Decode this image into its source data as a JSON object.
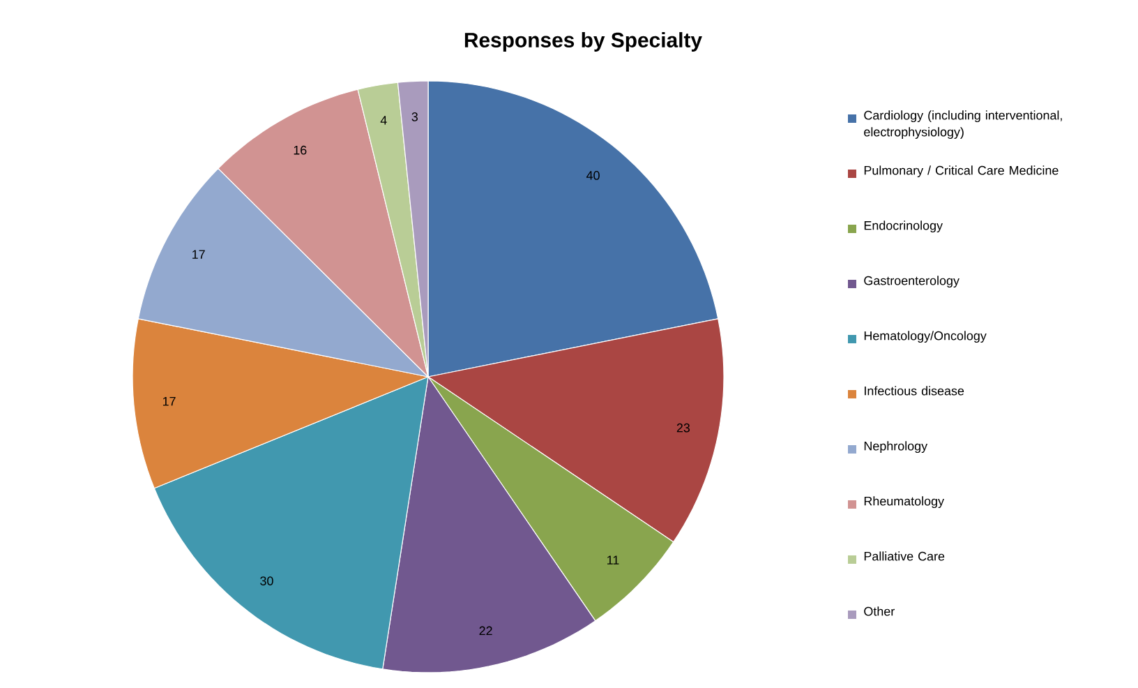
{
  "chart_data": {
    "type": "pie",
    "title": "Responses by Specialty",
    "categories": [
      "Cardiology (including interventional, electrophysiology)",
      "Pulmonary / Critical Care Medicine",
      "Endocrinology",
      "Gastroenterology",
      "Hematology/Oncology",
      "Infectious disease",
      "Nephrology",
      "Rheumatology",
      "Palliative Care",
      "Other"
    ],
    "values": [
      40,
      23,
      11,
      22,
      30,
      17,
      17,
      16,
      4,
      3
    ],
    "colors": [
      "#4672a8",
      "#aa4643",
      "#89a54e",
      "#71588f",
      "#4198af",
      "#db843d",
      "#93a9cf",
      "#d19392",
      "#b9cd96",
      "#a99bbd"
    ],
    "data_labels": true,
    "legend": "right"
  }
}
